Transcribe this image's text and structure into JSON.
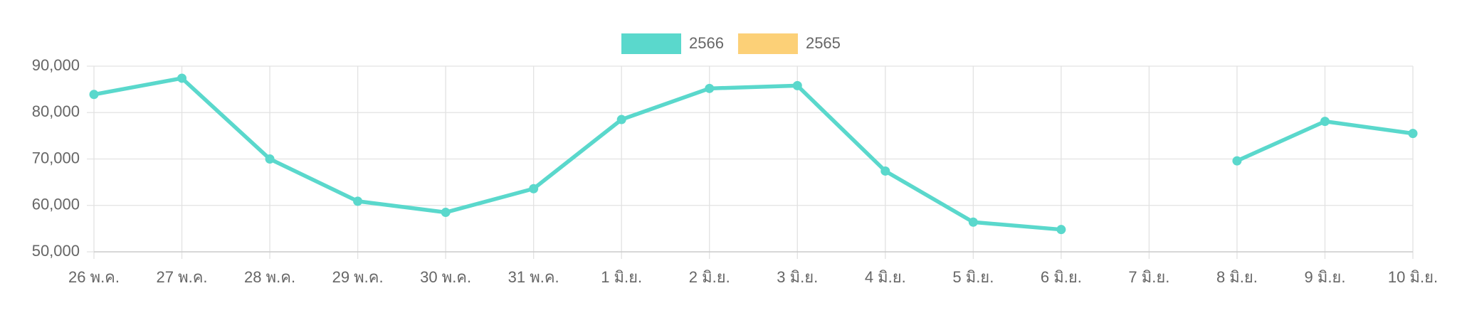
{
  "chart_data": {
    "type": "line",
    "categories": [
      "26 พ.ค.",
      "27 พ.ค.",
      "28 พ.ค.",
      "29 พ.ค.",
      "30 พ.ค.",
      "31 พ.ค.",
      "1 มิ.ย.",
      "2 มิ.ย.",
      "3 มิ.ย.",
      "4 มิ.ย.",
      "5 มิ.ย.",
      "6 มิ.ย.",
      "7 มิ.ย.",
      "8 มิ.ย.",
      "9 มิ.ย.",
      "10 มิ.ย."
    ],
    "series": [
      {
        "name": "2566",
        "color": "#5ad8cc",
        "values": [
          83900,
          87400,
          70000,
          60900,
          58500,
          63600,
          78500,
          85200,
          85800,
          67400,
          56400,
          54800,
          null,
          69600,
          78100,
          75500
        ]
      },
      {
        "name": "2565",
        "color": "#fcd077",
        "values": [
          null,
          null,
          null,
          null,
          null,
          null,
          null,
          null,
          null,
          null,
          null,
          null,
          null,
          null,
          null,
          null
        ]
      }
    ],
    "ylim": [
      50000,
      90000
    ],
    "yticks": [
      {
        "value": 50000,
        "label": "50,000"
      },
      {
        "value": 60000,
        "label": "60,000"
      },
      {
        "value": 70000,
        "label": "70,000"
      },
      {
        "value": 80000,
        "label": "80,000"
      },
      {
        "value": 90000,
        "label": "90,000"
      }
    ],
    "grid": true,
    "legend": "top"
  }
}
